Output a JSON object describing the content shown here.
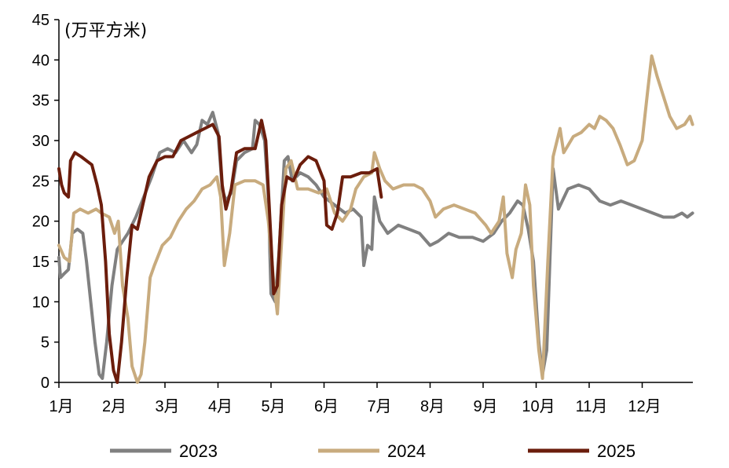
{
  "chart_data": {
    "type": "line",
    "unit_label": "(万平方米)",
    "ylim": [
      0,
      45
    ],
    "y_ticks": [
      0,
      5,
      10,
      15,
      20,
      25,
      30,
      35,
      40,
      45
    ],
    "x_tick_labels": [
      "1月",
      "2月",
      "3月",
      "4月",
      "5月",
      "6月",
      "7月",
      "8月",
      "9月",
      "10月",
      "11月",
      "12月"
    ],
    "xlim_months": [
      1,
      12.95
    ],
    "grid": false,
    "legend_position": "bottom",
    "series": [
      {
        "name": "2023",
        "color": "#808080",
        "points": [
          [
            1.0,
            15.5
          ],
          [
            1.03,
            13.0
          ],
          [
            1.1,
            13.5
          ],
          [
            1.18,
            14.0
          ],
          [
            1.25,
            18.5
          ],
          [
            1.35,
            19.0
          ],
          [
            1.45,
            18.5
          ],
          [
            1.52,
            15.0
          ],
          [
            1.6,
            10.0
          ],
          [
            1.68,
            5.0
          ],
          [
            1.76,
            1.0
          ],
          [
            1.82,
            0.5
          ],
          [
            1.9,
            5.0
          ],
          [
            2.0,
            12.0
          ],
          [
            2.1,
            16.5
          ],
          [
            2.2,
            17.5
          ],
          [
            2.3,
            18.5
          ],
          [
            2.45,
            20.5
          ],
          [
            2.6,
            23.0
          ],
          [
            2.75,
            25.5
          ],
          [
            2.9,
            28.5
          ],
          [
            3.05,
            29.0
          ],
          [
            3.2,
            28.5
          ],
          [
            3.35,
            30.0
          ],
          [
            3.5,
            28.5
          ],
          [
            3.6,
            29.5
          ],
          [
            3.7,
            32.5
          ],
          [
            3.8,
            32.0
          ],
          [
            3.9,
            33.5
          ],
          [
            4.0,
            31.0
          ],
          [
            4.08,
            24.0
          ],
          [
            4.15,
            22.5
          ],
          [
            4.25,
            23.5
          ],
          [
            4.35,
            27.5
          ],
          [
            4.5,
            28.5
          ],
          [
            4.65,
            29.0
          ],
          [
            4.7,
            32.5
          ],
          [
            4.78,
            32.0
          ],
          [
            4.88,
            30.0
          ],
          [
            4.95,
            23.0
          ],
          [
            5.0,
            11.0
          ],
          [
            5.08,
            10.0
          ],
          [
            5.15,
            16.0
          ],
          [
            5.25,
            27.5
          ],
          [
            5.32,
            28.0
          ],
          [
            5.4,
            25.0
          ],
          [
            5.55,
            26.0
          ],
          [
            5.7,
            25.5
          ],
          [
            5.85,
            24.5
          ],
          [
            6.0,
            23.0
          ],
          [
            6.2,
            22.0
          ],
          [
            6.4,
            21.0
          ],
          [
            6.55,
            21.5
          ],
          [
            6.7,
            20.5
          ],
          [
            6.75,
            14.5
          ],
          [
            6.82,
            17.0
          ],
          [
            6.9,
            16.5
          ],
          [
            6.95,
            23.0
          ],
          [
            7.05,
            20.0
          ],
          [
            7.2,
            18.5
          ],
          [
            7.4,
            19.5
          ],
          [
            7.6,
            19.0
          ],
          [
            7.8,
            18.5
          ],
          [
            8.0,
            17.0
          ],
          [
            8.15,
            17.5
          ],
          [
            8.35,
            18.5
          ],
          [
            8.55,
            18.0
          ],
          [
            8.8,
            18.0
          ],
          [
            9.0,
            17.5
          ],
          [
            9.2,
            18.5
          ],
          [
            9.35,
            20.0
          ],
          [
            9.5,
            21.0
          ],
          [
            9.65,
            22.5
          ],
          [
            9.75,
            22.0
          ],
          [
            9.85,
            19.0
          ],
          [
            9.95,
            15.0
          ],
          [
            10.05,
            5.0
          ],
          [
            10.12,
            1.0
          ],
          [
            10.2,
            4.0
          ],
          [
            10.32,
            26.5
          ],
          [
            10.42,
            21.5
          ],
          [
            10.6,
            24.0
          ],
          [
            10.8,
            24.5
          ],
          [
            11.0,
            24.0
          ],
          [
            11.2,
            22.5
          ],
          [
            11.4,
            22.0
          ],
          [
            11.6,
            22.5
          ],
          [
            11.8,
            22.0
          ],
          [
            12.0,
            21.5
          ],
          [
            12.2,
            21.0
          ],
          [
            12.4,
            20.5
          ],
          [
            12.6,
            20.5
          ],
          [
            12.75,
            21.0
          ],
          [
            12.85,
            20.5
          ],
          [
            12.95,
            21.0
          ]
        ]
      },
      {
        "name": "2024",
        "color": "#c8ab7e",
        "points": [
          [
            1.0,
            17.0
          ],
          [
            1.1,
            15.5
          ],
          [
            1.2,
            15.0
          ],
          [
            1.28,
            21.0
          ],
          [
            1.4,
            21.5
          ],
          [
            1.55,
            21.0
          ],
          [
            1.7,
            21.5
          ],
          [
            1.8,
            21.0
          ],
          [
            1.95,
            20.5
          ],
          [
            2.05,
            18.5
          ],
          [
            2.12,
            20.0
          ],
          [
            2.2,
            12.0
          ],
          [
            2.3,
            8.0
          ],
          [
            2.38,
            2.0
          ],
          [
            2.48,
            0.0
          ],
          [
            2.55,
            1.0
          ],
          [
            2.62,
            5.0
          ],
          [
            2.72,
            13.0
          ],
          [
            2.8,
            14.5
          ],
          [
            2.95,
            17.0
          ],
          [
            3.1,
            18.0
          ],
          [
            3.25,
            20.0
          ],
          [
            3.4,
            21.5
          ],
          [
            3.55,
            22.5
          ],
          [
            3.7,
            24.0
          ],
          [
            3.85,
            24.5
          ],
          [
            3.98,
            25.5
          ],
          [
            4.05,
            23.0
          ],
          [
            4.12,
            14.5
          ],
          [
            4.22,
            18.5
          ],
          [
            4.32,
            24.5
          ],
          [
            4.5,
            25.0
          ],
          [
            4.7,
            25.0
          ],
          [
            4.85,
            24.5
          ],
          [
            4.95,
            20.0
          ],
          [
            5.05,
            12.5
          ],
          [
            5.12,
            8.5
          ],
          [
            5.2,
            17.5
          ],
          [
            5.28,
            26.5
          ],
          [
            5.38,
            27.5
          ],
          [
            5.5,
            24.0
          ],
          [
            5.7,
            24.0
          ],
          [
            5.9,
            23.5
          ],
          [
            6.05,
            24.0
          ],
          [
            6.2,
            21.0
          ],
          [
            6.35,
            20.0
          ],
          [
            6.5,
            21.5
          ],
          [
            6.6,
            24.0
          ],
          [
            6.75,
            25.5
          ],
          [
            6.9,
            26.0
          ],
          [
            6.95,
            28.5
          ],
          [
            7.05,
            26.5
          ],
          [
            7.15,
            25.0
          ],
          [
            7.3,
            24.0
          ],
          [
            7.5,
            24.5
          ],
          [
            7.7,
            24.5
          ],
          [
            7.85,
            24.0
          ],
          [
            8.0,
            22.5
          ],
          [
            8.1,
            20.5
          ],
          [
            8.25,
            21.5
          ],
          [
            8.45,
            22.0
          ],
          [
            8.65,
            21.5
          ],
          [
            8.85,
            21.0
          ],
          [
            9.05,
            19.5
          ],
          [
            9.15,
            18.5
          ],
          [
            9.3,
            20.0
          ],
          [
            9.38,
            23.0
          ],
          [
            9.45,
            16.0
          ],
          [
            9.55,
            13.0
          ],
          [
            9.62,
            16.5
          ],
          [
            9.72,
            18.5
          ],
          [
            9.8,
            24.5
          ],
          [
            9.88,
            22.0
          ],
          [
            9.95,
            12.0
          ],
          [
            10.05,
            4.0
          ],
          [
            10.12,
            0.5
          ],
          [
            10.22,
            15.0
          ],
          [
            10.32,
            28.0
          ],
          [
            10.45,
            31.5
          ],
          [
            10.52,
            28.5
          ],
          [
            10.7,
            30.5
          ],
          [
            10.85,
            31.0
          ],
          [
            11.0,
            32.0
          ],
          [
            11.1,
            31.5
          ],
          [
            11.2,
            33.0
          ],
          [
            11.32,
            32.5
          ],
          [
            11.45,
            31.5
          ],
          [
            11.58,
            29.5
          ],
          [
            11.72,
            27.0
          ],
          [
            11.85,
            27.5
          ],
          [
            12.0,
            30.0
          ],
          [
            12.1,
            36.0
          ],
          [
            12.18,
            40.5
          ],
          [
            12.28,
            38.0
          ],
          [
            12.4,
            35.5
          ],
          [
            12.52,
            33.0
          ],
          [
            12.65,
            31.5
          ],
          [
            12.8,
            32.0
          ],
          [
            12.9,
            33.0
          ],
          [
            12.95,
            32.0
          ]
        ]
      },
      {
        "name": "2025",
        "color": "#6b1d0c",
        "points": [
          [
            1.0,
            26.5
          ],
          [
            1.05,
            24.5
          ],
          [
            1.1,
            23.5
          ],
          [
            1.18,
            23.0
          ],
          [
            1.22,
            27.5
          ],
          [
            1.3,
            28.5
          ],
          [
            1.42,
            28.0
          ],
          [
            1.52,
            27.5
          ],
          [
            1.62,
            27.0
          ],
          [
            1.72,
            24.5
          ],
          [
            1.8,
            22.0
          ],
          [
            1.88,
            15.0
          ],
          [
            1.95,
            6.0
          ],
          [
            2.03,
            1.5
          ],
          [
            2.1,
            0.0
          ],
          [
            2.18,
            5.0
          ],
          [
            2.28,
            13.0
          ],
          [
            2.38,
            19.5
          ],
          [
            2.48,
            19.0
          ],
          [
            2.58,
            22.0
          ],
          [
            2.7,
            25.5
          ],
          [
            2.85,
            27.5
          ],
          [
            3.0,
            28.0
          ],
          [
            3.15,
            28.0
          ],
          [
            3.3,
            30.0
          ],
          [
            3.45,
            30.5
          ],
          [
            3.6,
            31.0
          ],
          [
            3.75,
            31.5
          ],
          [
            3.9,
            32.0
          ],
          [
            4.02,
            30.5
          ],
          [
            4.08,
            24.5
          ],
          [
            4.15,
            21.5
          ],
          [
            4.25,
            24.0
          ],
          [
            4.35,
            28.5
          ],
          [
            4.5,
            29.0
          ],
          [
            4.7,
            29.0
          ],
          [
            4.82,
            32.5
          ],
          [
            4.9,
            30.0
          ],
          [
            4.98,
            20.0
          ],
          [
            5.05,
            11.0
          ],
          [
            5.12,
            12.0
          ],
          [
            5.2,
            22.0
          ],
          [
            5.3,
            25.5
          ],
          [
            5.42,
            25.0
          ],
          [
            5.55,
            27.0
          ],
          [
            5.7,
            28.0
          ],
          [
            5.85,
            27.5
          ],
          [
            6.0,
            25.0
          ],
          [
            6.05,
            19.5
          ],
          [
            6.15,
            19.0
          ],
          [
            6.25,
            21.0
          ],
          [
            6.35,
            25.5
          ],
          [
            6.5,
            25.5
          ],
          [
            6.7,
            26.0
          ],
          [
            6.85,
            26.0
          ],
          [
            7.0,
            26.5
          ],
          [
            7.08,
            23.0
          ]
        ]
      }
    ]
  }
}
